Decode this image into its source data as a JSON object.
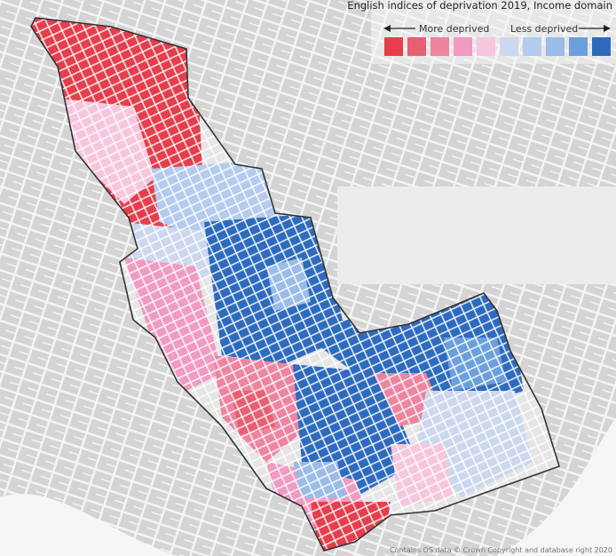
{
  "legend": {
    "title": "English indices of deprivation 2019, Income domain",
    "left_label": "More deprived",
    "right_label": "Less deprived",
    "colors": [
      "#e63e4c",
      "#e95f72",
      "#ee84a0",
      "#f19ac2",
      "#f7c6dc",
      "#cdd8ef",
      "#b3cbee",
      "#9bbbe8",
      "#6c9fde",
      "#2d6bbf"
    ]
  },
  "source": "Contains OS data © Crown Copyright and database right 2020"
}
